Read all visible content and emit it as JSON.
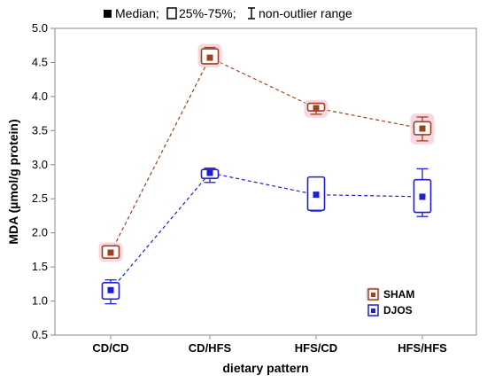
{
  "chart_data": {
    "type": "box",
    "top_legend": {
      "median_label": "Median;",
      "box_label": "25%-75%;",
      "whisker_label": "non-outlier range"
    },
    "xlabel": "dietary pattern",
    "ylabel": "MDA (µmol/g protein)",
    "categories": [
      "CD/CD",
      "CD/HFS",
      "HFS/CD",
      "HFS/HFS"
    ],
    "ylim": [
      0.5,
      5.0
    ],
    "yticks": [
      "0.5",
      "1.0",
      "1.5",
      "2.0",
      "2.5",
      "3.0",
      "3.5",
      "4.0",
      "4.5",
      "5.0"
    ],
    "legend_position": "bottom-right",
    "series": [
      {
        "name": "SHAM",
        "color": "#a0401f",
        "median": [
          1.71,
          4.57,
          3.83,
          3.53
        ],
        "q1": [
          1.63,
          4.48,
          3.79,
          3.44
        ],
        "q3": [
          1.81,
          4.7,
          3.9,
          3.63
        ],
        "whisker_low": [
          1.63,
          4.48,
          3.74,
          3.35
        ],
        "whisker_high": [
          1.81,
          4.72,
          3.9,
          3.7
        ]
      },
      {
        "name": "DJOS",
        "color": "#1f1fd0",
        "median": [
          1.16,
          2.88,
          2.56,
          2.53
        ],
        "q1": [
          1.03,
          2.8,
          2.33,
          2.3
        ],
        "q3": [
          1.27,
          2.93,
          2.82,
          2.78
        ],
        "whisker_low": [
          0.96,
          2.74,
          2.32,
          2.24
        ],
        "whisker_high": [
          1.31,
          2.95,
          2.82,
          2.94
        ]
      }
    ]
  }
}
